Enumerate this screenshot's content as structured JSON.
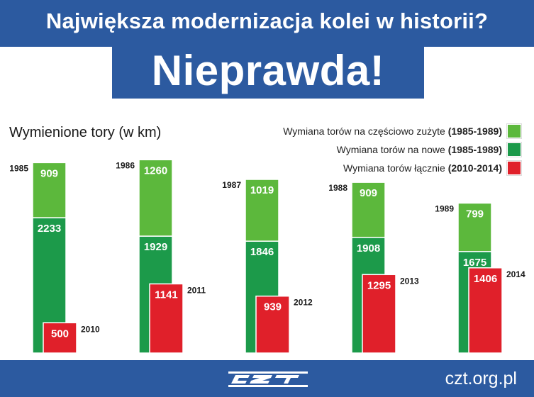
{
  "header": {
    "headline": "Największa modernizacja kolei w historii?",
    "banner": "Nieprawda!"
  },
  "colors": {
    "brand_blue": "#2c5aa0",
    "light_green": "#5cb83c",
    "dark_green": "#1c9a4a",
    "red": "#e0202a"
  },
  "footer": {
    "url": "czt.org.pl",
    "logo_icon": "czt-logo-icon"
  },
  "legend": [
    {
      "label": "Wymiana torów na częściowo zużyte ",
      "bold": "(1985-1989)",
      "color": "#5cb83c"
    },
    {
      "label": "Wymiana torów na nowe ",
      "bold": "(1985-1989)",
      "color": "#1c9a4a"
    },
    {
      "label": "Wymiana torów łącznie ",
      "bold": "(2010-2014)",
      "color": "#e0202a"
    }
  ],
  "chart_data": {
    "type": "bar",
    "title": "Wymienione tory (w km)",
    "stacked_years": [
      "1985",
      "1986",
      "1987",
      "1988",
      "1989"
    ],
    "comparison_years": [
      "2010",
      "2011",
      "2012",
      "2013",
      "2014"
    ],
    "series": [
      {
        "name": "Wymiana torów na częściowo zużyte (1985-1989)",
        "values": [
          909,
          1260,
          1019,
          909,
          799
        ]
      },
      {
        "name": "Wymiana torów na nowe (1985-1989)",
        "values": [
          2233,
          1929,
          1846,
          1908,
          1675
        ]
      },
      {
        "name": "Wymiana torów łącznie (2010-2014)",
        "values": [
          500,
          1141,
          939,
          1295,
          1406
        ]
      }
    ],
    "grid": false,
    "legend_position": "top-right"
  }
}
